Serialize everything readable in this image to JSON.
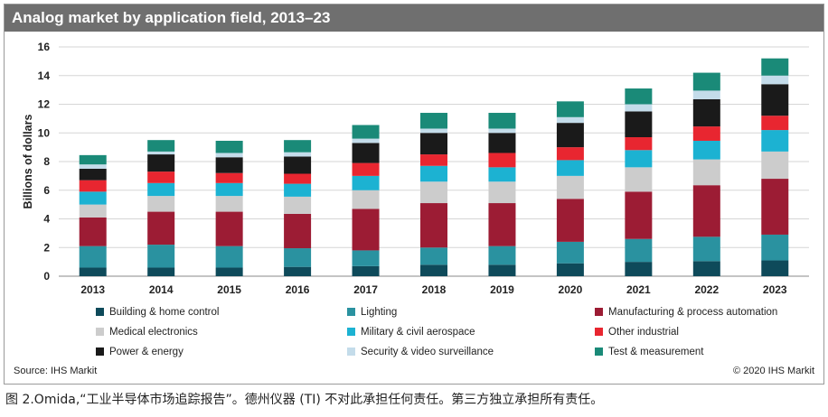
{
  "caption": "图 2.Omida,“工业半导体市场追踪报告”。德州仪器 (TI) 不对此承担任何责任。第三方独立承担所有责任。",
  "source": "Source: IHS Markit",
  "copyright": "© 2020 IHS Markit",
  "chart_data": {
    "type": "bar",
    "stacked": true,
    "title": "Analog market by application field, 2013–23",
    "xlabel": "",
    "ylabel": "Billions of dollars",
    "ylim": [
      0,
      16
    ],
    "yticks": [
      0,
      2,
      4,
      6,
      8,
      10,
      12,
      14,
      16
    ],
    "grid": true,
    "categories": [
      "2013",
      "2014",
      "2015",
      "2016",
      "2017",
      "2018",
      "2019",
      "2020",
      "2021",
      "2022",
      "2023"
    ],
    "series": [
      {
        "name": "Building & home control",
        "color": "#0e4a5a",
        "values": [
          0.6,
          0.6,
          0.6,
          0.65,
          0.7,
          0.8,
          0.8,
          0.9,
          1.0,
          1.05,
          1.1
        ]
      },
      {
        "name": "Lighting",
        "color": "#2a92a0",
        "values": [
          1.5,
          1.6,
          1.5,
          1.3,
          1.1,
          1.2,
          1.3,
          1.5,
          1.6,
          1.7,
          1.8
        ]
      },
      {
        "name": "Manufacturing & process automation",
        "color": "#9c1c34",
        "values": [
          2.0,
          2.3,
          2.4,
          2.4,
          2.9,
          3.1,
          3.0,
          3.0,
          3.3,
          3.6,
          3.9
        ]
      },
      {
        "name": "Medical electronics",
        "color": "#cccccc",
        "values": [
          0.9,
          1.1,
          1.1,
          1.2,
          1.3,
          1.5,
          1.5,
          1.6,
          1.7,
          1.8,
          1.9
        ]
      },
      {
        "name": "Military & civil aerospace",
        "color": "#1cb2d2",
        "values": [
          0.9,
          0.9,
          0.9,
          0.9,
          1.0,
          1.1,
          1.0,
          1.1,
          1.2,
          1.3,
          1.5
        ]
      },
      {
        "name": "Other industrial",
        "color": "#e82630",
        "values": [
          0.8,
          0.8,
          0.7,
          0.7,
          0.9,
          0.8,
          1.0,
          0.9,
          0.9,
          1.0,
          1.0
        ]
      },
      {
        "name": "Power & energy",
        "color": "#1a1a1a",
        "values": [
          0.8,
          1.2,
          1.1,
          1.2,
          1.4,
          1.5,
          1.4,
          1.7,
          1.8,
          1.9,
          2.2
        ]
      },
      {
        "name": "Security & video surveillance",
        "color": "#c4dcea",
        "values": [
          0.3,
          0.2,
          0.3,
          0.3,
          0.3,
          0.3,
          0.3,
          0.4,
          0.5,
          0.6,
          0.6
        ]
      },
      {
        "name": "Test & measurement",
        "color": "#1a8a78",
        "values": [
          0.65,
          0.8,
          0.85,
          0.85,
          0.95,
          1.1,
          1.1,
          1.1,
          1.1,
          1.25,
          1.2
        ]
      }
    ]
  }
}
